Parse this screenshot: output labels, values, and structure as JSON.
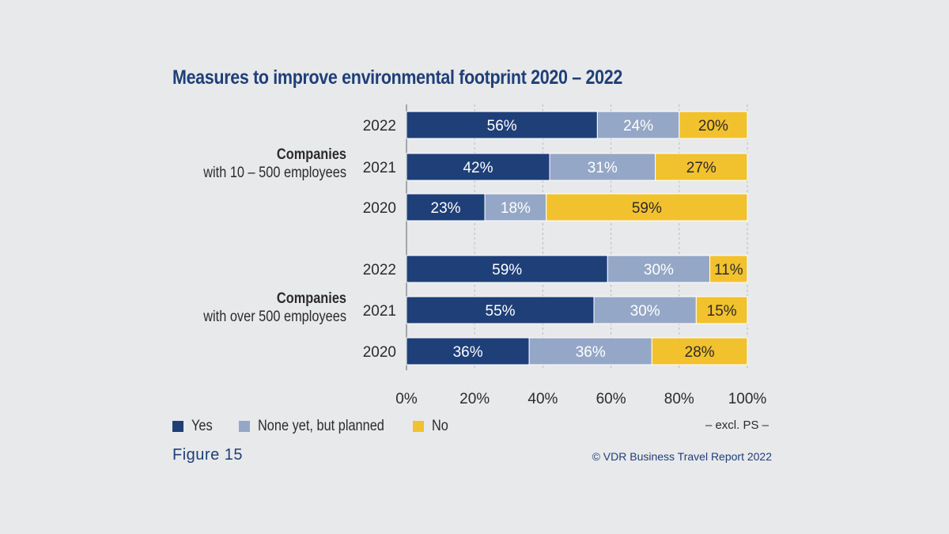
{
  "figure_label": "Figure 15",
  "source": "© VDR Business Travel Report 2022",
  "note": "– excl. PS –",
  "colors": {
    "yes": "#1f3f78",
    "planned": "#95a7c6",
    "no": "#f2c12e"
  },
  "chart_data": {
    "type": "bar",
    "orientation": "horizontal",
    "stacked": true,
    "title": "Measures to improve environmental footprint 2020 – 2022",
    "xlim": [
      0,
      100
    ],
    "x_ticks": [
      "0%",
      "20%",
      "40%",
      "60%",
      "80%",
      "100%"
    ],
    "grid": true,
    "legend": [
      "Yes",
      "None yet, but planned",
      "No"
    ],
    "legend_position": "bottom-left",
    "groups": [
      {
        "name": "Companies",
        "desc": "with 10 – 500 employees",
        "rows": [
          {
            "year": "2022",
            "values": [
              56,
              24,
              20
            ],
            "labels": [
              "56%",
              "24%",
              "20%"
            ]
          },
          {
            "year": "2021",
            "values": [
              42,
              31,
              27
            ],
            "labels": [
              "42%",
              "31%",
              "27%"
            ]
          },
          {
            "year": "2020",
            "values": [
              23,
              18,
              59
            ],
            "labels": [
              "23%",
              "18%",
              "59%"
            ]
          }
        ]
      },
      {
        "name": "Companies",
        "desc": "with over 500 employees",
        "rows": [
          {
            "year": "2022",
            "values": [
              59,
              30,
              11
            ],
            "labels": [
              "59%",
              "30%",
              "11%"
            ]
          },
          {
            "year": "2021",
            "values": [
              55,
              30,
              15
            ],
            "labels": [
              "55%",
              "30%",
              "15%"
            ]
          },
          {
            "year": "2020",
            "values": [
              36,
              36,
              28
            ],
            "labels": [
              "36%",
              "36%",
              "28%"
            ]
          }
        ]
      }
    ]
  }
}
